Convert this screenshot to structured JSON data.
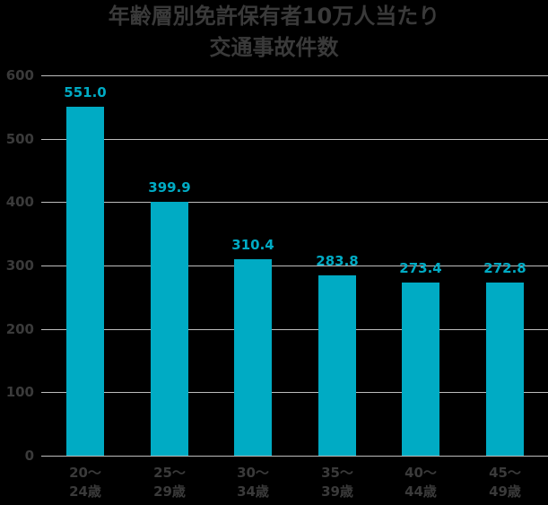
{
  "title": {
    "line1": "年齢層別免許保有者10万人当たり",
    "line2": "交通事故件数"
  },
  "colors": {
    "bar": "#00abc4",
    "value_label": "#00abc4",
    "text": "#3a3a3a",
    "grid": "#bdbdbd",
    "background": "#000000"
  },
  "chart_data": {
    "type": "bar",
    "title": "年齢層別免許保有者10万人当たり交通事故件数",
    "xlabel": "",
    "ylabel": "",
    "categories": [
      "20〜24歳",
      "25〜29歳",
      "30〜34歳",
      "35〜39歳",
      "40〜44歳",
      "45〜49歳"
    ],
    "category_lines": [
      [
        "20〜",
        "24歳"
      ],
      [
        "25〜",
        "29歳"
      ],
      [
        "30〜",
        "34歳"
      ],
      [
        "35〜",
        "39歳"
      ],
      [
        "40〜",
        "44歳"
      ],
      [
        "45〜",
        "49歳"
      ]
    ],
    "values": [
      551.0,
      399.9,
      310.4,
      283.8,
      273.4,
      272.8
    ],
    "value_labels": [
      "551.0",
      "399.9",
      "310.4",
      "283.8",
      "273.4",
      "272.8"
    ],
    "ylim": [
      0,
      600
    ],
    "yticks": [
      0,
      100,
      200,
      300,
      400,
      500,
      600
    ],
    "grid": true,
    "legend": null
  }
}
